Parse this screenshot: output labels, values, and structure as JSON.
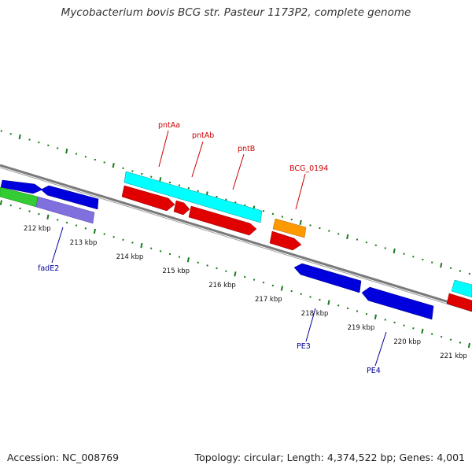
{
  "title": "Mycobacterium bovis BCG str. Pasteur 1173P2, complete genome",
  "accession": "Accession: NC_008769",
  "topology": "Topology: circular; Length: 4,374,522 bp; Genes: 4,001",
  "ticks": [
    {
      "label": "212 kbp"
    },
    {
      "label": "213 kbp"
    },
    {
      "label": "214 kbp"
    },
    {
      "label": "215 kbp"
    },
    {
      "label": "216 kbp"
    },
    {
      "label": "217 kbp"
    },
    {
      "label": "218 kbp"
    },
    {
      "label": "219 kbp"
    },
    {
      "label": "220 kbp"
    },
    {
      "label": "221 kbp"
    }
  ],
  "gene_labels": {
    "pntAa": "pntAa",
    "pntAb": "pntAb",
    "pntB": "pntB",
    "BCG_0194": "BCG_0194",
    "fadE2": "fadE2",
    "PE3": "PE3",
    "PE4": "PE4"
  },
  "colors": {
    "backbone": "#808080",
    "tick_green": "#1a7a1a",
    "red": "#e00000",
    "blue": "#0000dd",
    "cyan": "#00ffff",
    "orange": "#ff9900",
    "green": "#33cc33",
    "purple": "#8070dd",
    "label_red": "#cc0000",
    "label_blue": "#000099"
  }
}
